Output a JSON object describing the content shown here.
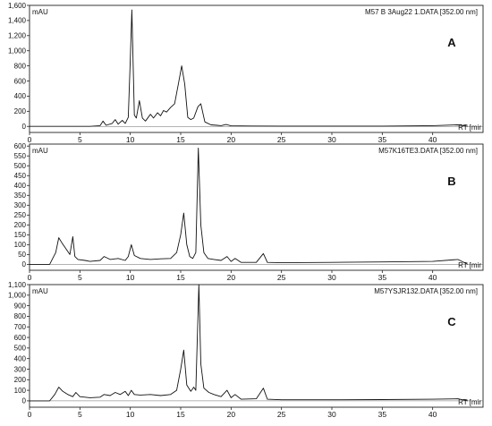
{
  "chart_data": [
    {
      "type": "line",
      "panel_letter": "A",
      "file_label": "M57 B 3Aug22 1.DATA [352.00 nm]",
      "ylabel": "mAU",
      "xlabel": "RT [mir",
      "xlim": [
        0,
        45
      ],
      "ylim": [
        -80,
        1600
      ],
      "yticks": [
        0,
        200,
        400,
        600,
        800,
        1000,
        1200,
        1400,
        1600
      ],
      "ytick_labels": [
        "0",
        "200",
        "400",
        "600",
        "800",
        "1,000",
        "1,200",
        "1,400",
        "1,600"
      ],
      "xticks": [
        0,
        5,
        10,
        15,
        20,
        25,
        30,
        35,
        40
      ],
      "xtick_labels": [
        "0",
        "5",
        "10",
        "15",
        "20",
        "25",
        "30",
        "35",
        "40"
      ],
      "x": [
        0,
        1,
        2,
        3,
        4,
        5,
        6,
        7,
        7.3,
        7.6,
        8.2,
        8.5,
        8.8,
        9.2,
        9.5,
        9.8,
        10.0,
        10.15,
        10.4,
        10.6,
        10.9,
        11.2,
        11.5,
        12.0,
        12.3,
        12.7,
        13.0,
        13.3,
        13.6,
        14.0,
        14.4,
        14.8,
        15.1,
        15.4,
        15.7,
        16.0,
        16.3,
        16.7,
        17.0,
        17.4,
        18.0,
        18.6,
        19.0,
        19.5,
        20.0,
        22,
        25,
        30,
        35,
        40,
        42.5,
        43.5
      ],
      "y": [
        0,
        0,
        0,
        0,
        0,
        0,
        0,
        10,
        70,
        15,
        40,
        90,
        30,
        80,
        40,
        120,
        900,
        1540,
        150,
        110,
        340,
        110,
        70,
        160,
        110,
        180,
        140,
        210,
        190,
        250,
        300,
        580,
        800,
        560,
        120,
        90,
        110,
        260,
        300,
        60,
        20,
        15,
        10,
        25,
        8,
        5,
        3,
        3,
        3,
        10,
        20,
        0
      ],
      "series": [
        {
          "values_ref": "y"
        }
      ]
    },
    {
      "type": "line",
      "panel_letter": "B",
      "file_label": "M57K16TE3.DATA [352.00 nm]",
      "ylabel": "mAU",
      "xlabel": "RT [mir",
      "xlim": [
        0,
        45
      ],
      "ylim": [
        -30,
        610
      ],
      "yticks": [
        0,
        50,
        100,
        150,
        200,
        250,
        300,
        350,
        400,
        450,
        500,
        550,
        600
      ],
      "ytick_labels": [
        "0",
        "50",
        "100",
        "150",
        "200",
        "250",
        "300",
        "350",
        "400",
        "450",
        "500",
        "550",
        "600"
      ],
      "xticks": [
        0,
        5,
        10,
        15,
        20,
        25,
        30,
        35,
        40
      ],
      "xtick_labels": [
        "0",
        "5",
        "10",
        "15",
        "20",
        "25",
        "30",
        "35",
        "40"
      ],
      "x": [
        0,
        1,
        2,
        2.6,
        2.9,
        3.2,
        3.6,
        4.0,
        4.3,
        4.5,
        4.8,
        5.5,
        6.0,
        7.0,
        7.4,
        8.0,
        8.8,
        9.5,
        9.8,
        10.1,
        10.4,
        11.0,
        12.0,
        13.0,
        14.0,
        14.6,
        15.0,
        15.3,
        15.6,
        15.9,
        16.2,
        16.5,
        16.75,
        17.0,
        17.3,
        17.7,
        18.3,
        19.0,
        19.6,
        20.0,
        20.4,
        21.0,
        22.5,
        23.2,
        23.6,
        25,
        30,
        35,
        40,
        42.5,
        43.5
      ],
      "y": [
        0,
        0,
        0,
        60,
        135,
        110,
        80,
        50,
        140,
        40,
        25,
        20,
        15,
        20,
        40,
        25,
        30,
        20,
        40,
        100,
        45,
        30,
        25,
        28,
        30,
        60,
        150,
        260,
        100,
        40,
        30,
        60,
        590,
        200,
        60,
        30,
        25,
        20,
        40,
        15,
        30,
        10,
        10,
        55,
        10,
        8,
        10,
        12,
        15,
        25,
        0
      ],
      "series": [
        {
          "values_ref": "y"
        }
      ]
    },
    {
      "type": "line",
      "panel_letter": "C",
      "file_label": "M57YSJR132.DATA [352.00 nm]",
      "ylabel": "mAU",
      "xlabel": "RT [mir",
      "xlim": [
        0,
        45
      ],
      "ylim": [
        -60,
        1100
      ],
      "yticks": [
        0,
        100,
        200,
        300,
        400,
        500,
        600,
        700,
        800,
        900,
        1000,
        1100
      ],
      "ytick_labels": [
        "0",
        "100",
        "200",
        "300",
        "400",
        "500",
        "600",
        "700",
        "800",
        "900",
        "1,000",
        "1,100"
      ],
      "xticks": [
        0,
        5,
        10,
        15,
        20,
        25,
        30,
        35,
        40
      ],
      "xtick_labels": [
        "0",
        "5",
        "10",
        "15",
        "20",
        "25",
        "30",
        "35",
        "40"
      ],
      "x": [
        0,
        1,
        2,
        2.5,
        2.9,
        3.3,
        3.8,
        4.3,
        4.6,
        5.0,
        6.0,
        7.0,
        7.4,
        8.0,
        8.5,
        9.0,
        9.5,
        9.8,
        10.1,
        10.4,
        11.0,
        12.0,
        13.0,
        14.0,
        14.6,
        15.0,
        15.3,
        15.6,
        16.0,
        16.3,
        16.5,
        16.8,
        17.0,
        17.3,
        17.8,
        18.3,
        19.0,
        19.6,
        20.0,
        20.4,
        21.0,
        22.5,
        23.2,
        23.6,
        25,
        30,
        35,
        40,
        42.5,
        43.5
      ],
      "y": [
        0,
        0,
        0,
        60,
        130,
        90,
        60,
        40,
        80,
        40,
        30,
        35,
        60,
        50,
        80,
        60,
        90,
        50,
        100,
        60,
        55,
        60,
        50,
        60,
        100,
        300,
        480,
        150,
        90,
        130,
        100,
        1100,
        350,
        120,
        80,
        60,
        40,
        100,
        30,
        60,
        15,
        20,
        120,
        15,
        10,
        10,
        12,
        15,
        20,
        0
      ],
      "series": [
        {
          "values_ref": "y"
        }
      ]
    }
  ]
}
